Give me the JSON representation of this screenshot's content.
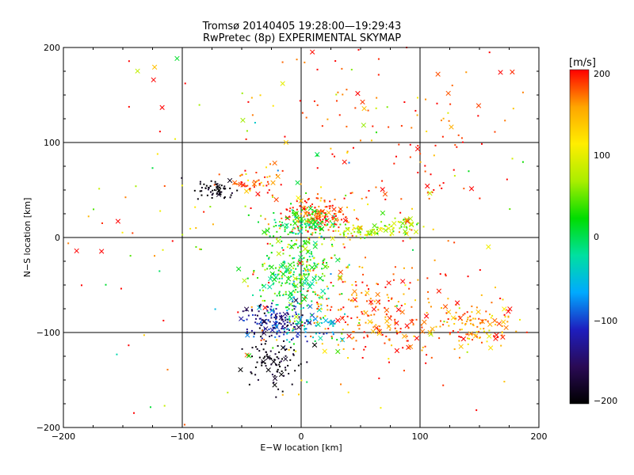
{
  "chart_data": {
    "type": "scatter",
    "title": "Tromsø 20140405 19:28:00—19:29:43",
    "subtitle": "RwPretec (8p) EXPERIMENTAL SKYMAP",
    "xlabel": "E−W location [km]",
    "ylabel": "N−S location [km]",
    "xlim": [
      -200,
      200
    ],
    "ylim": [
      -200,
      200
    ],
    "xticks": [
      "−200",
      "−100",
      "0",
      "100",
      "200"
    ],
    "yticks": [
      "−200",
      "−100",
      "0",
      "100",
      "200"
    ],
    "grid": true,
    "markers": [
      "dot",
      "x"
    ],
    "colorbar": {
      "label": "[m/s]",
      "range": [
        -200,
        200
      ],
      "ticks": [
        "200",
        "100",
        "0",
        "−100",
        "−200"
      ],
      "colormap": [
        "#000000",
        "#2a0a55",
        "#1e1ebe",
        "#00aaff",
        "#00e0a0",
        "#00dd00",
        "#aaee00",
        "#ffee00",
        "#ffa500",
        "#ff0000"
      ]
    },
    "clusters": [
      {
        "x": 15,
        "y": 22,
        "sx": 14,
        "sy": 10,
        "n": 170,
        "v": 185,
        "vs": 25
      },
      {
        "x": -2,
        "y": 12,
        "sx": 14,
        "sy": 9,
        "n": 130,
        "v": 20,
        "vs": 25
      },
      {
        "x": 55,
        "y": 6,
        "sx": 12,
        "sy": 4,
        "n": 60,
        "v": 85,
        "vs": 25
      },
      {
        "x": 85,
        "y": 12,
        "sx": 10,
        "sy": 5,
        "n": 40,
        "v": 75,
        "vs": 30
      },
      {
        "x": -70,
        "y": 50,
        "sx": 9,
        "sy": 6,
        "n": 55,
        "v": -195,
        "vs": 10
      },
      {
        "x": -35,
        "y": 55,
        "sx": 14,
        "sy": 6,
        "n": 45,
        "v": 180,
        "vs": 30
      },
      {
        "x": -8,
        "y": -50,
        "sx": 15,
        "sy": 22,
        "n": 190,
        "v": 5,
        "vs": 35
      },
      {
        "x": 0,
        "y": -25,
        "sx": 18,
        "sy": 12,
        "n": 90,
        "v": 40,
        "vs": 35
      },
      {
        "x": -22,
        "y": -88,
        "sx": 12,
        "sy": 9,
        "n": 160,
        "v": -130,
        "vs": 30
      },
      {
        "x": -25,
        "y": -130,
        "sx": 11,
        "sy": 14,
        "n": 90,
        "v": -190,
        "vs": 15
      },
      {
        "x": 10,
        "y": -95,
        "sx": 14,
        "sy": 10,
        "n": 60,
        "v": -60,
        "vs": 40
      },
      {
        "x": 70,
        "y": -90,
        "sx": 35,
        "sy": 20,
        "n": 180,
        "v": 175,
        "vs": 25
      },
      {
        "x": 150,
        "y": -92,
        "sx": 18,
        "sy": 12,
        "n": 110,
        "v": 150,
        "vs": 30
      },
      {
        "x": 80,
        "y": 110,
        "sx": 60,
        "sy": 50,
        "n": 110,
        "v": 185,
        "vs": 20
      },
      {
        "x": 40,
        "y": -60,
        "sx": 30,
        "sy": 20,
        "n": 60,
        "v": 175,
        "vs": 30
      },
      {
        "x": 0,
        "y": 0,
        "sx": 110,
        "sy": 100,
        "n": 220,
        "v": 130,
        "vs": 90
      }
    ]
  }
}
